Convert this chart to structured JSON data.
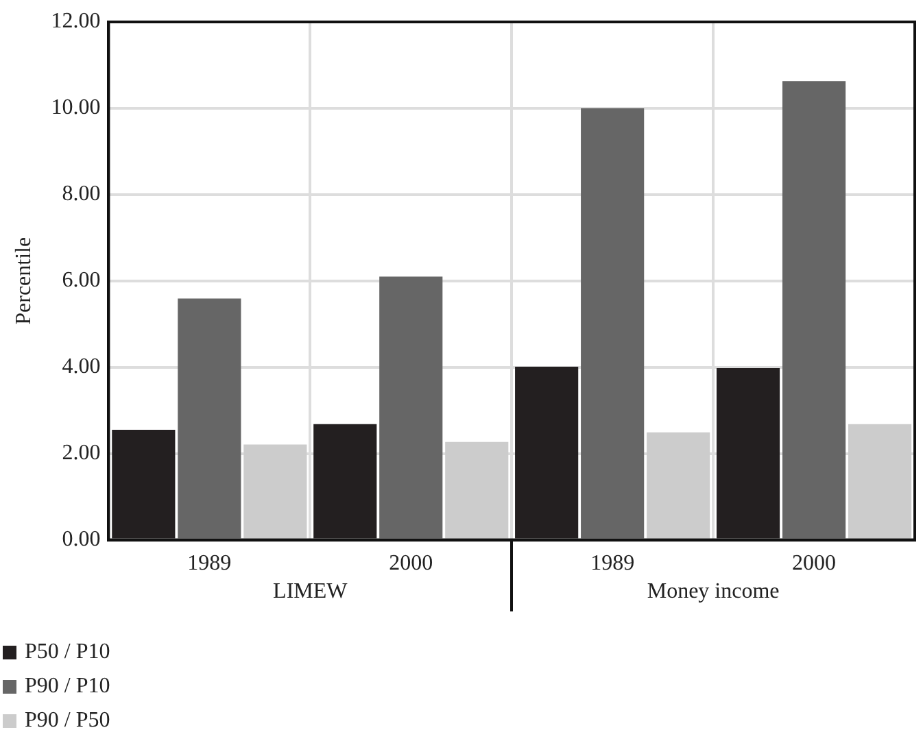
{
  "chart_data": {
    "type": "bar",
    "ylabel": "Percentile",
    "categories": [
      "1989",
      "2000",
      "1989",
      "2000"
    ],
    "series": [
      {
        "name": "P50 / P10",
        "color": "#231f20",
        "values": [
          2.55,
          2.68,
          4.01,
          3.98
        ]
      },
      {
        "name": "P90 / P10",
        "color": "#666666",
        "values": [
          5.59,
          6.1,
          10.0,
          10.63
        ]
      },
      {
        "name": "P90 / P50",
        "color": "#cccccc",
        "values": [
          2.21,
          2.27,
          2.49,
          2.68
        ]
      }
    ],
    "ylim": [
      0,
      12
    ],
    "yticks": [
      {
        "value": 0,
        "label": "0.00"
      },
      {
        "value": 2,
        "label": "2.00"
      },
      {
        "value": 4,
        "label": "4.00"
      },
      {
        "value": 6,
        "label": "6.00"
      },
      {
        "value": 8,
        "label": "8.00"
      },
      {
        "value": 10,
        "label": "10.00"
      },
      {
        "value": 12,
        "label": "12.00"
      }
    ],
    "annotations": [
      "LIMEW",
      "Money income"
    ],
    "grid": true,
    "legend": "bottom left"
  }
}
